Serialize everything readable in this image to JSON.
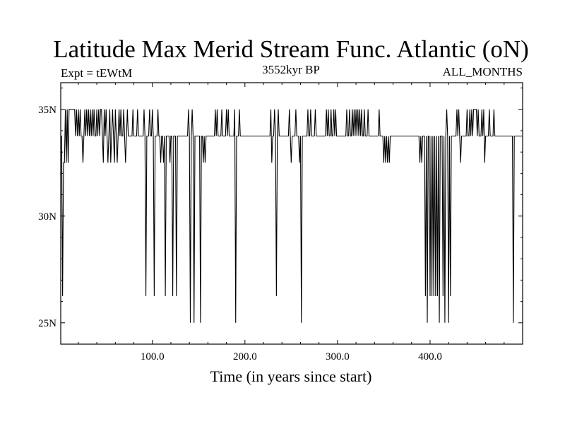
{
  "chart_data": {
    "type": "line",
    "title": "Latitude Max Merid Stream Func. Atlantic (oN)",
    "subtitle_left": "Expt = tEWtM",
    "subtitle_center": "3552kyr BP",
    "subtitle_right": "ALL_MONTHS",
    "xlabel": "Time (in years since start)",
    "ylabel": "",
    "xlim": [
      1,
      500
    ],
    "ylim": [
      24,
      36.25
    ],
    "x_ticks": [
      {
        "value": 100,
        "label": "100.0"
      },
      {
        "value": 200,
        "label": "200.0"
      },
      {
        "value": 300,
        "label": "300.0"
      },
      {
        "value": 400,
        "label": "400.0"
      }
    ],
    "y_ticks": [
      {
        "value": 25,
        "label": "25N"
      },
      {
        "value": 30,
        "label": "30N"
      },
      {
        "value": 35,
        "label": "35N"
      }
    ],
    "baseline": 33.75,
    "series": [
      {
        "events": [
          [
            3,
            26.25
          ],
          [
            4,
            32.5
          ],
          [
            5,
            32.5
          ],
          [
            6,
            35
          ],
          [
            7,
            32.5
          ],
          [
            8,
            35
          ],
          [
            9,
            32.5
          ],
          [
            10,
            35
          ],
          [
            11,
            35
          ],
          [
            12,
            35
          ],
          [
            13,
            35
          ],
          [
            14,
            35
          ],
          [
            15,
            35
          ],
          [
            16,
            35
          ],
          [
            18,
            35
          ],
          [
            20,
            35
          ],
          [
            22,
            35
          ],
          [
            25,
            32.5
          ],
          [
            27,
            35
          ],
          [
            29,
            35
          ],
          [
            31,
            35
          ],
          [
            33,
            35
          ],
          [
            35,
            35
          ],
          [
            37,
            35
          ],
          [
            40,
            35
          ],
          [
            42,
            35
          ],
          [
            44,
            35
          ],
          [
            45,
            35
          ],
          [
            47,
            32.5
          ],
          [
            48,
            35
          ],
          [
            50,
            35
          ],
          [
            52,
            32.5
          ],
          [
            54,
            35
          ],
          [
            55,
            32.5
          ],
          [
            57,
            35
          ],
          [
            59,
            32.5
          ],
          [
            60,
            35
          ],
          [
            62,
            32.5
          ],
          [
            64,
            35
          ],
          [
            66,
            35
          ],
          [
            69,
            35
          ],
          [
            71,
            32.5
          ],
          [
            73,
            35
          ],
          [
            79,
            35
          ],
          [
            84,
            35
          ],
          [
            91,
            35
          ],
          [
            93,
            26.25
          ],
          [
            97,
            35
          ],
          [
            100,
            35
          ],
          [
            102,
            26.25
          ],
          [
            106,
            35
          ],
          [
            109,
            32.5
          ],
          [
            112,
            32.5
          ],
          [
            114,
            26.25
          ],
          [
            116,
            33.75
          ],
          [
            119,
            32.5
          ],
          [
            122,
            26.25
          ],
          [
            124,
            33.75
          ],
          [
            126,
            26.25
          ],
          [
            139,
            35
          ],
          [
            141,
            25
          ],
          [
            143,
            35
          ],
          [
            145,
            25
          ],
          [
            152,
            25
          ],
          [
            153,
            33.75
          ],
          [
            155,
            32.5
          ],
          [
            157,
            32.5
          ],
          [
            168,
            35
          ],
          [
            170,
            35
          ],
          [
            175,
            35
          ],
          [
            180,
            35
          ],
          [
            182,
            35
          ],
          [
            189,
            35
          ],
          [
            190,
            25
          ],
          [
            194,
            35
          ],
          [
            228,
            35
          ],
          [
            229,
            32.5
          ],
          [
            232,
            35
          ],
          [
            234,
            26.25
          ],
          [
            236,
            35
          ],
          [
            248,
            35
          ],
          [
            250,
            32.5
          ],
          [
            255,
            35
          ],
          [
            257,
            33.75
          ],
          [
            259,
            32.5
          ],
          [
            261,
            25
          ],
          [
            268,
            35
          ],
          [
            271,
            35
          ],
          [
            276,
            35
          ],
          [
            288,
            35
          ],
          [
            290,
            35
          ],
          [
            293,
            35
          ],
          [
            296,
            35
          ],
          [
            298,
            35
          ],
          [
            310,
            35
          ],
          [
            313,
            35
          ],
          [
            316,
            35
          ],
          [
            318,
            35
          ],
          [
            320,
            35
          ],
          [
            322,
            35
          ],
          [
            324,
            35
          ],
          [
            326,
            35
          ],
          [
            329,
            35
          ],
          [
            333,
            35
          ],
          [
            345,
            35
          ],
          [
            350,
            32.5
          ],
          [
            352,
            32.5
          ],
          [
            354,
            32.5
          ],
          [
            356,
            32.5
          ],
          [
            389,
            32.5
          ],
          [
            391,
            32.5
          ],
          [
            395,
            26.25
          ],
          [
            397,
            25
          ],
          [
            400,
            26.25
          ],
          [
            402,
            26.25
          ],
          [
            404,
            26.25
          ],
          [
            406,
            26.25
          ],
          [
            408,
            26.25
          ],
          [
            410,
            25
          ],
          [
            414,
            26.25
          ],
          [
            416,
            25
          ],
          [
            418,
            35
          ],
          [
            420,
            25
          ],
          [
            422,
            26.25
          ],
          [
            429,
            35
          ],
          [
            431,
            35
          ],
          [
            433,
            32.5
          ],
          [
            440,
            35
          ],
          [
            443,
            35
          ],
          [
            445,
            35
          ],
          [
            447,
            35
          ],
          [
            448,
            35
          ],
          [
            449,
            35
          ],
          [
            450,
            35
          ],
          [
            452,
            35
          ],
          [
            456,
            35
          ],
          [
            458,
            35
          ],
          [
            459,
            32.5
          ],
          [
            464,
            35
          ],
          [
            469,
            35
          ],
          [
            490,
            25
          ]
        ]
      }
    ]
  }
}
